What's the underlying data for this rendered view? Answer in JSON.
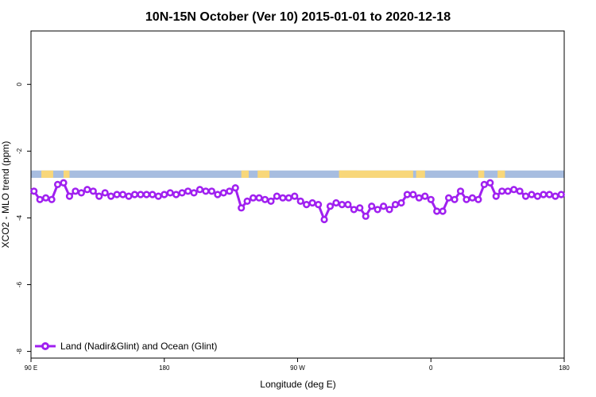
{
  "chart_data": {
    "type": "line",
    "title": "10N-15N October (Ver 10)   2015-01-01 to 2020-12-18",
    "xlabel": "Longitude (deg E)",
    "ylabel": "XCO2 - MLO trend (ppm)",
    "xlim": [
      90,
      450
    ],
    "ylim": [
      -8.2,
      1.6
    ],
    "x_ticks": [
      {
        "value": 90,
        "label": "90 E"
      },
      {
        "value": 180,
        "label": "180"
      },
      {
        "value": 270,
        "label": "90 W"
      },
      {
        "value": 360,
        "label": "0"
      },
      {
        "value": 450,
        "label": "180"
      }
    ],
    "y_ticks": [
      {
        "value": 0,
        "label": "0"
      },
      {
        "value": -2,
        "label": "-2"
      },
      {
        "value": -4,
        "label": "-4"
      },
      {
        "value": -6,
        "label": "-6"
      },
      {
        "value": -8,
        "label": "-8"
      }
    ],
    "land_mask_band": {
      "y_top": -2.58,
      "y_bottom": -2.8,
      "ocean_color": "#a7bde0",
      "land_color": "#f8d77a",
      "land_ranges": [
        [
          97,
          105
        ],
        [
          112,
          116
        ],
        [
          232,
          237
        ],
        [
          243,
          251
        ],
        [
          298,
          348
        ],
        [
          350,
          356
        ],
        [
          298,
          310
        ],
        [
          392,
          396
        ],
        [
          405,
          410
        ]
      ]
    },
    "legend": {
      "position": "bottom-left"
    },
    "grid": false,
    "series": [
      {
        "name": "Land (Nadir&Glint) and Ocean (Glint)",
        "color": "#a020f0",
        "x": [
          92,
          96,
          100,
          104,
          108,
          112,
          116,
          120,
          124,
          128,
          132,
          136,
          140,
          144,
          148,
          152,
          156,
          160,
          164,
          168,
          172,
          176,
          180,
          184,
          188,
          192,
          196,
          200,
          204,
          208,
          212,
          216,
          220,
          224,
          228,
          232,
          236,
          240,
          244,
          248,
          252,
          256,
          260,
          264,
          268,
          272,
          276,
          280,
          284,
          288,
          292,
          296,
          300,
          304,
          308,
          312,
          316,
          320,
          324,
          328,
          332,
          336,
          340,
          344,
          348,
          352,
          356,
          360,
          364,
          368,
          372,
          376,
          380,
          384,
          388,
          392,
          396,
          400,
          404,
          408,
          412,
          416,
          420,
          424,
          428,
          432,
          436,
          440,
          444,
          448
        ],
        "y": [
          -3.2,
          -3.45,
          -3.4,
          -3.45,
          -3.0,
          -2.95,
          -3.35,
          -3.2,
          -3.25,
          -3.15,
          -3.2,
          -3.35,
          -3.25,
          -3.35,
          -3.3,
          -3.3,
          -3.35,
          -3.3,
          -3.3,
          -3.3,
          -3.3,
          -3.35,
          -3.3,
          -3.25,
          -3.3,
          -3.25,
          -3.2,
          -3.25,
          -3.15,
          -3.2,
          -3.2,
          -3.3,
          -3.25,
          -3.2,
          -3.1,
          -3.7,
          -3.5,
          -3.4,
          -3.4,
          -3.45,
          -3.5,
          -3.35,
          -3.4,
          -3.4,
          -3.35,
          -3.5,
          -3.6,
          -3.55,
          -3.6,
          -4.05,
          -3.65,
          -3.55,
          -3.6,
          -3.6,
          -3.75,
          -3.7,
          -3.95,
          -3.65,
          -3.75,
          -3.65,
          -3.75,
          -3.6,
          -3.55,
          -3.3,
          -3.3,
          -3.4,
          -3.35,
          -3.45,
          -3.8,
          -3.8,
          -3.4,
          -3.45,
          -3.2,
          -3.45,
          -3.4,
          -3.45,
          -3.0,
          -2.95,
          -3.35,
          -3.2,
          -3.2,
          -3.15,
          -3.2,
          -3.35,
          -3.3,
          -3.35,
          -3.3,
          -3.3,
          -3.35,
          -3.3
        ]
      }
    ]
  }
}
